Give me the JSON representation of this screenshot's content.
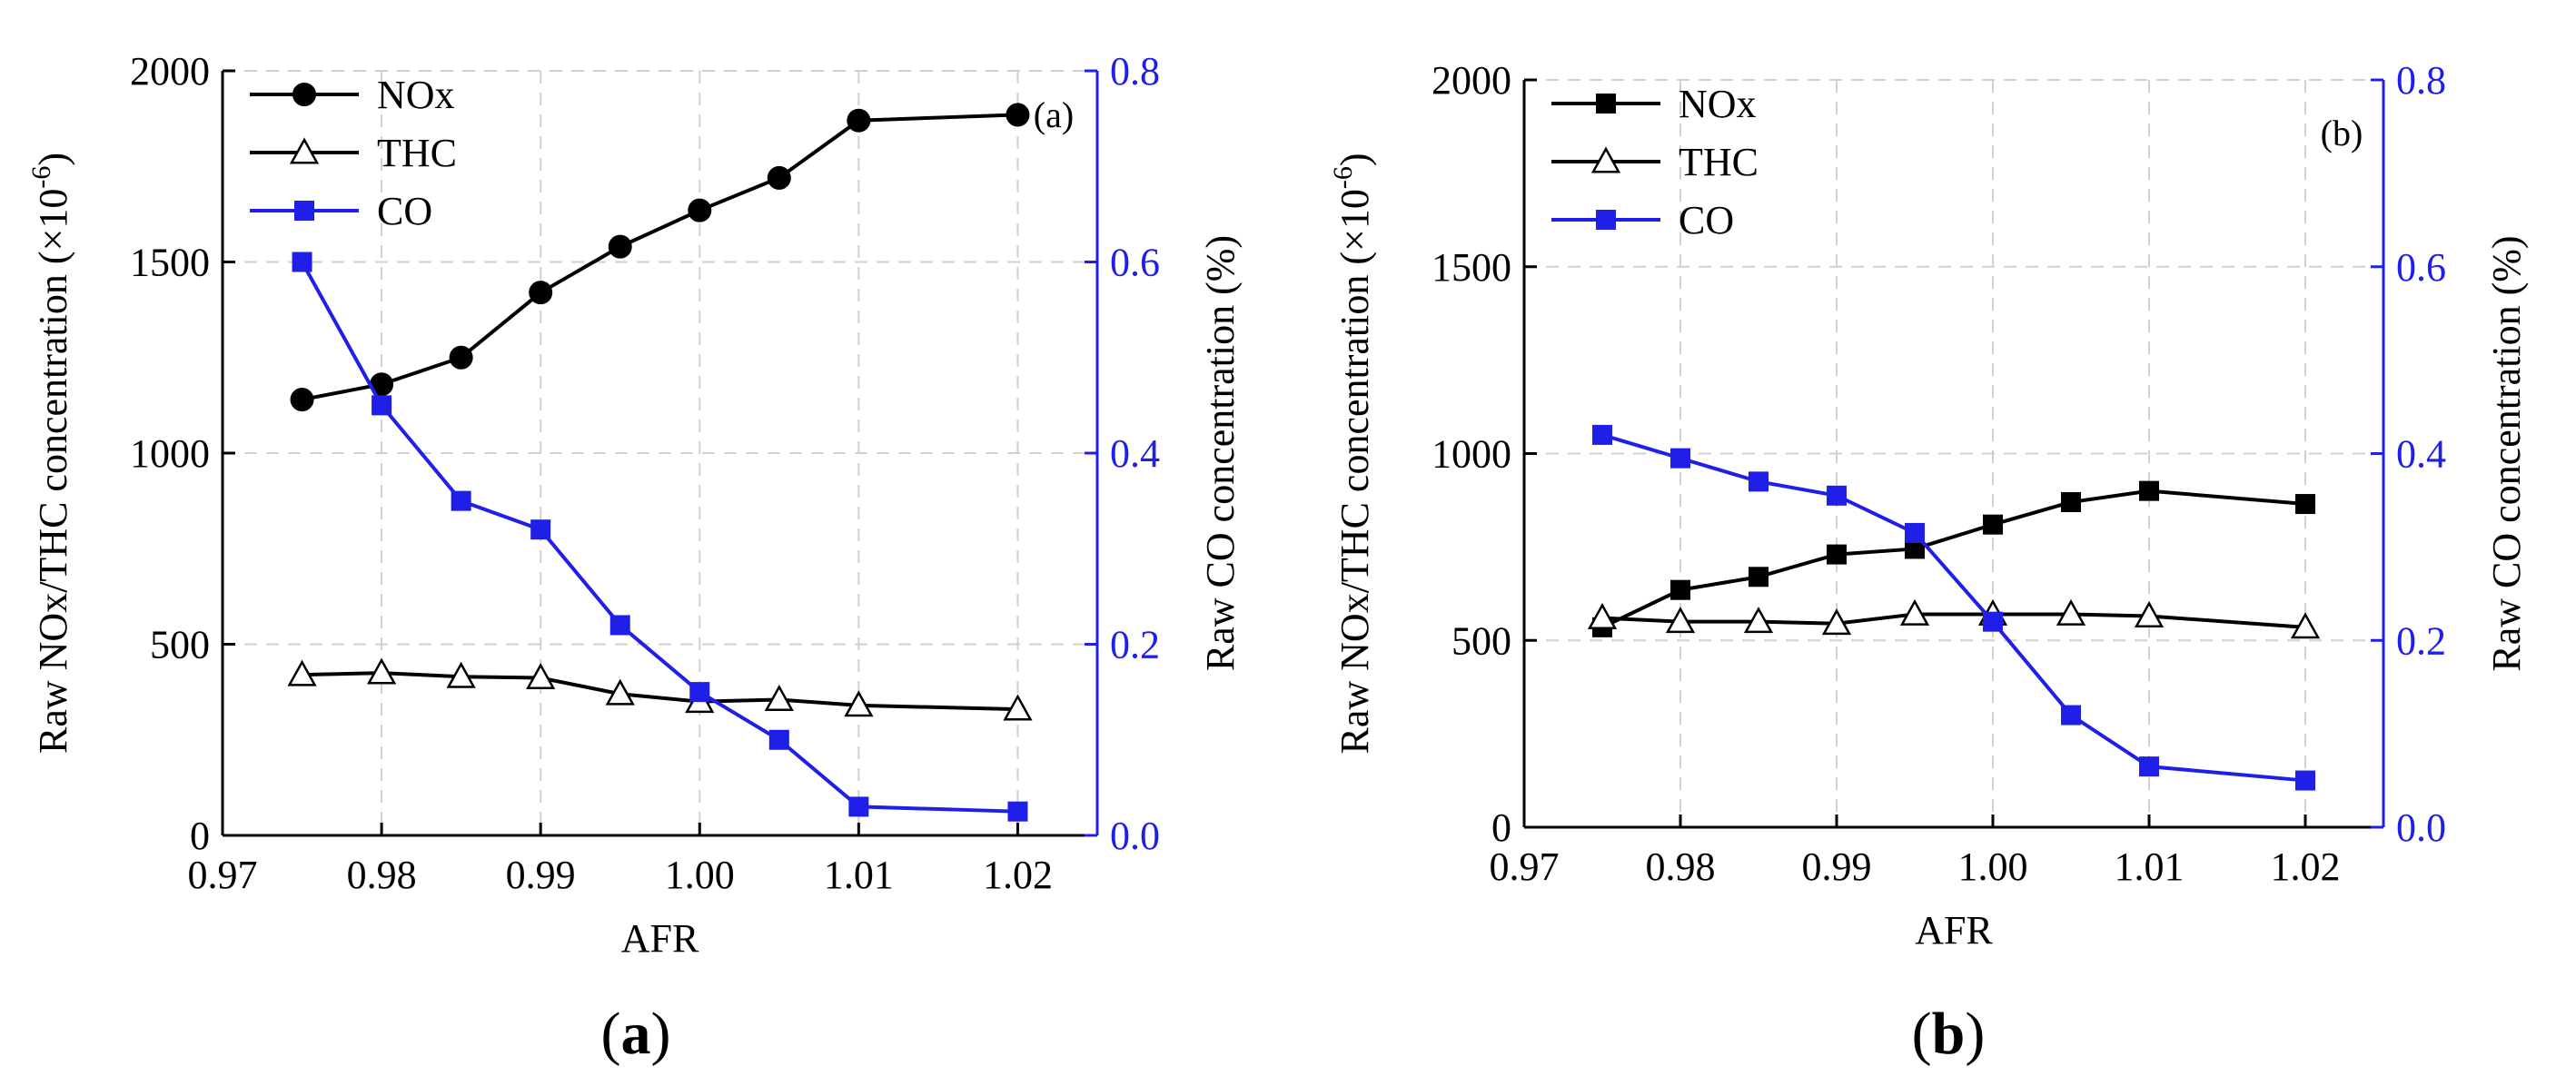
{
  "colors": {
    "nox": "#000000",
    "thc": "#000000",
    "co": "#1f1fe8",
    "grid": "#d0d0d0"
  },
  "chart_data": [
    {
      "type": "line",
      "panel": "a",
      "caption": "a",
      "tag": "(a)",
      "xlabel": "AFR",
      "ylabel": "Raw NOx/THC concentration (×10",
      "ylabel_sup": "-6",
      "ylabel_end": ")",
      "y2label": "Raw CO concentration (%)",
      "xlim": [
        0.97,
        1.025
      ],
      "ylim": [
        0,
        2000
      ],
      "y2lim": [
        0,
        0.8
      ],
      "xticks": [
        "0.97",
        "0.98",
        "0.99",
        "1.00",
        "1.01",
        "1.02"
      ],
      "yticks": [
        "0",
        "500",
        "1000",
        "1500",
        "2000"
      ],
      "y2ticks": [
        "0.0",
        "0.2",
        "0.4",
        "0.6",
        "0.8"
      ],
      "grid": true,
      "legend": "top-left",
      "x": [
        0.975,
        0.98,
        0.985,
        0.99,
        0.995,
        1.0,
        1.005,
        1.01,
        1.02
      ],
      "series": [
        {
          "name": "NOx",
          "axis": "left",
          "marker": "circle",
          "values": [
            1140,
            1180,
            1250,
            1420,
            1540,
            1635,
            1720,
            1870,
            1885
          ]
        },
        {
          "name": "THC",
          "axis": "left",
          "marker": "triangle",
          "values": [
            420,
            425,
            415,
            412,
            370,
            350,
            355,
            340,
            330
          ]
        },
        {
          "name": "CO",
          "axis": "right",
          "marker": "square",
          "values": [
            0.6,
            0.45,
            0.35,
            0.32,
            0.22,
            0.15,
            0.1,
            0.03,
            0.025
          ]
        }
      ]
    },
    {
      "type": "line",
      "panel": "b",
      "caption": "b",
      "tag": "(b)",
      "xlabel": "AFR",
      "ylabel": "Raw NOx/THC concentration (×10",
      "ylabel_sup": "-6",
      "ylabel_end": ")",
      "y2label": "Raw CO concentration (%)",
      "xlim": [
        0.97,
        1.025
      ],
      "ylim": [
        0,
        2000
      ],
      "y2lim": [
        0,
        0.8
      ],
      "xticks": [
        "0.97",
        "0.98",
        "0.99",
        "1.00",
        "1.01",
        "1.02"
      ],
      "yticks": [
        "0",
        "500",
        "1000",
        "1500",
        "2000"
      ],
      "y2ticks": [
        "0.0",
        "0.2",
        "0.4",
        "0.6",
        "0.8"
      ],
      "grid": true,
      "legend": "top-left",
      "x": [
        0.975,
        0.98,
        0.985,
        0.99,
        0.995,
        1.0,
        1.005,
        1.01,
        1.02
      ],
      "series": [
        {
          "name": "NOx",
          "axis": "left",
          "marker": "square",
          "values": [
            535,
            635,
            670,
            730,
            745,
            810,
            870,
            900,
            865
          ]
        },
        {
          "name": "THC",
          "axis": "left",
          "marker": "triangle",
          "values": [
            560,
            550,
            550,
            545,
            570,
            570,
            570,
            565,
            535
          ]
        },
        {
          "name": "CO",
          "axis": "right",
          "marker": "square",
          "values": [
            0.42,
            0.395,
            0.37,
            0.355,
            0.315,
            0.22,
            0.12,
            0.065,
            0.05
          ]
        }
      ]
    }
  ]
}
